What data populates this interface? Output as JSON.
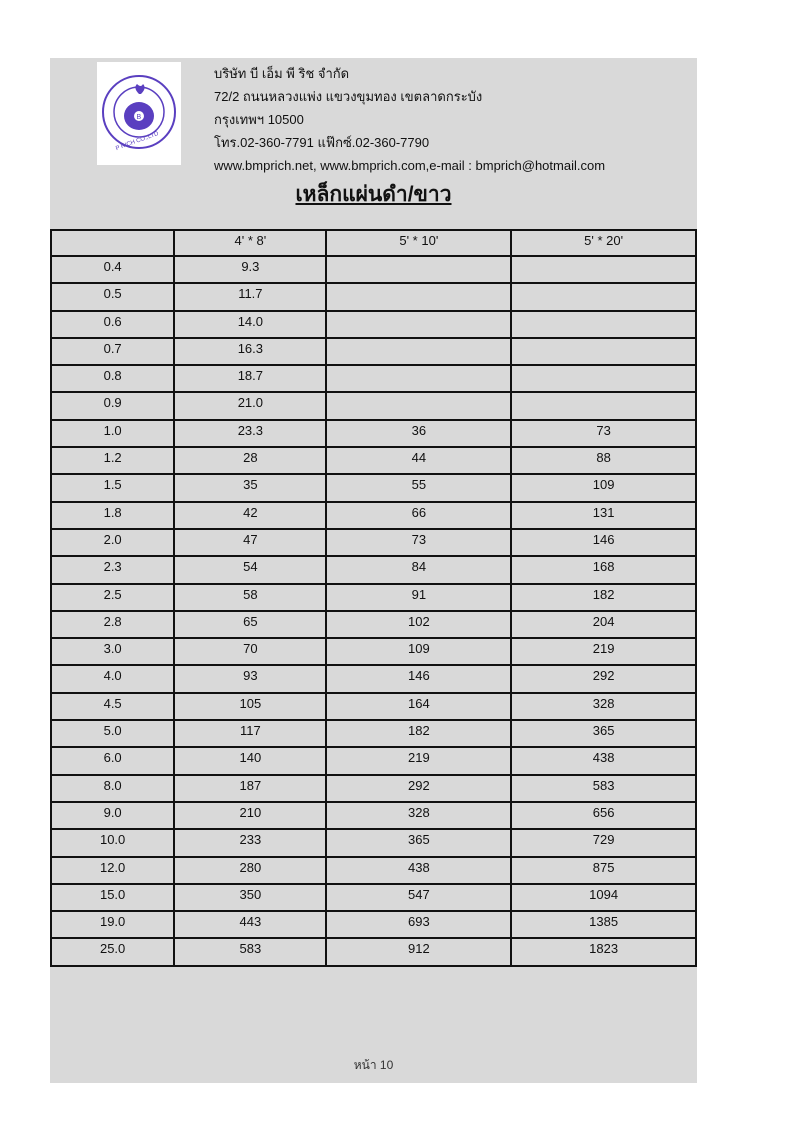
{
  "header": {
    "company_name": "บริษัท บี เอ็ม พี ริช จำกัด",
    "address_line1": "72/2 ถนนหลวงแพ่ง แขวงขุมทอง เขตลาดกระบัง",
    "address_line2": "กรุงเทพฯ 10500",
    "phone_fax": "โทร.02-360-7791 แฟ๊กซ์.02-360-7790",
    "web_email": "www.bmprich.net, www.bmprich.com,e-mail : bmprich@hotmail.com",
    "logo_text": "บริษัท บี เอ็ม พี ริช จำกัด B M P RICH CO.,LTD.",
    "logo_color": "#5a3fc0"
  },
  "title": "เหล็กแผ่นดำ/ขาว",
  "table": {
    "columns": [
      "",
      "4' * 8'",
      "5' * 10'",
      "5' * 20'"
    ],
    "rows": [
      [
        "0.4",
        "9.3",
        "",
        ""
      ],
      [
        "0.5",
        "11.7",
        "",
        ""
      ],
      [
        "0.6",
        "14.0",
        "",
        ""
      ],
      [
        "0.7",
        "16.3",
        "",
        ""
      ],
      [
        "0.8",
        "18.7",
        "",
        ""
      ],
      [
        "0.9",
        "21.0",
        "",
        ""
      ],
      [
        "1.0",
        "23.3",
        "36",
        "73"
      ],
      [
        "1.2",
        "28",
        "44",
        "88"
      ],
      [
        "1.5",
        "35",
        "55",
        "109"
      ],
      [
        "1.8",
        "42",
        "66",
        "131"
      ],
      [
        "2.0",
        "47",
        "73",
        "146"
      ],
      [
        "2.3",
        "54",
        "84",
        "168"
      ],
      [
        "2.5",
        "58",
        "91",
        "182"
      ],
      [
        "2.8",
        "65",
        "102",
        "204"
      ],
      [
        "3.0",
        "70",
        "109",
        "219"
      ],
      [
        "4.0",
        "93",
        "146",
        "292"
      ],
      [
        "4.5",
        "105",
        "164",
        "328"
      ],
      [
        "5.0",
        "117",
        "182",
        "365"
      ],
      [
        "6.0",
        "140",
        "219",
        "438"
      ],
      [
        "8.0",
        "187",
        "292",
        "583"
      ],
      [
        "9.0",
        "210",
        "328",
        "656"
      ],
      [
        "10.0",
        "233",
        "365",
        "729"
      ],
      [
        "12.0",
        "280",
        "438",
        "875"
      ],
      [
        "15.0",
        "350",
        "547",
        "1094"
      ],
      [
        "19.0",
        "443",
        "693",
        "1385"
      ],
      [
        "25.0",
        "583",
        "912",
        "1823"
      ]
    ]
  },
  "footer": {
    "page_label": "หน้า 10"
  }
}
